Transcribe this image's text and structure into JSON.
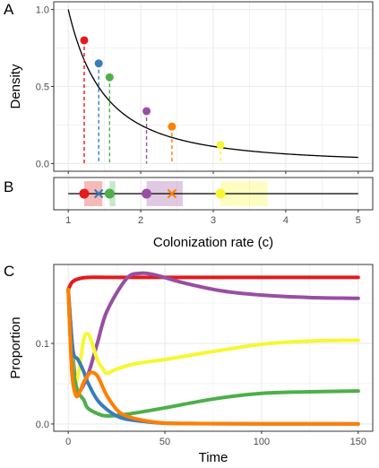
{
  "colors": {
    "red": "#e41a1c",
    "blue": "#377eb8",
    "green": "#4daf4a",
    "purple": "#984ea3",
    "orange": "#ff7f00",
    "yellow": "#f7f731",
    "grid": "#ebebeb",
    "border": "#333333"
  },
  "chart_data": [
    {
      "id": "A",
      "type": "line",
      "panel_label": "A",
      "xlabel": "",
      "ylabel": "Density",
      "xlim": [
        0.8,
        5.2
      ],
      "ylim": [
        -0.05,
        1.05
      ],
      "x_ticks": [
        1,
        2,
        3,
        4,
        5
      ],
      "y_ticks": [
        0.0,
        0.5,
        1.0
      ],
      "y_tick_labels": [
        "0.0",
        "0.5",
        "1.0"
      ],
      "curve": {
        "x_from": 1,
        "x_to": 5,
        "formula": "1/c^2"
      },
      "points": [
        {
          "name": "red",
          "x": 1.22,
          "y": 0.8
        },
        {
          "name": "blue",
          "x": 1.42,
          "y": 0.65
        },
        {
          "name": "green",
          "x": 1.57,
          "y": 0.56
        },
        {
          "name": "purple",
          "x": 2.08,
          "y": 0.34
        },
        {
          "name": "orange",
          "x": 2.43,
          "y": 0.24
        },
        {
          "name": "yellow",
          "x": 3.1,
          "y": 0.12
        }
      ]
    },
    {
      "id": "B",
      "type": "scatter",
      "panel_label": "B",
      "xlabel": "Colonization rate (c)",
      "xlim": [
        0.8,
        5.2
      ],
      "x_ticks": [
        1,
        2,
        3,
        4,
        5
      ],
      "line_from": 1,
      "line_to": 5,
      "ranges": [
        {
          "name": "red",
          "from": 1.22,
          "to": 1.47
        },
        {
          "name": "green",
          "from": 1.57,
          "to": 1.65
        },
        {
          "name": "purple",
          "from": 2.08,
          "to": 2.58
        },
        {
          "name": "yellow",
          "from": 3.1,
          "to": 3.75
        }
      ],
      "points": [
        {
          "name": "red",
          "x": 1.22,
          "marker": "circle"
        },
        {
          "name": "blue",
          "x": 1.42,
          "marker": "cross"
        },
        {
          "name": "green",
          "x": 1.57,
          "marker": "circle"
        },
        {
          "name": "purple",
          "x": 2.08,
          "marker": "circle"
        },
        {
          "name": "orange",
          "x": 2.43,
          "marker": "cross"
        },
        {
          "name": "yellow",
          "x": 3.1,
          "marker": "circle"
        }
      ]
    },
    {
      "id": "C",
      "type": "line",
      "panel_label": "C",
      "xlabel": "Time",
      "ylabel": "Proportion",
      "xlim": [
        -7.5,
        157.5
      ],
      "ylim": [
        -0.009,
        0.198
      ],
      "x_ticks": [
        0,
        50,
        100,
        150
      ],
      "y_ticks": [
        0.0,
        0.1
      ],
      "y_tick_labels": [
        "0.0",
        "0.1"
      ],
      "series": [
        {
          "name": "red",
          "x": [
            0,
            2,
            5,
            10,
            20,
            40,
            80,
            150
          ],
          "values": [
            0.167,
            0.176,
            0.18,
            0.182,
            0.182,
            0.182,
            0.182,
            0.182
          ]
        },
        {
          "name": "purple",
          "x": [
            0,
            3,
            5,
            10,
            15,
            20,
            30,
            37,
            45,
            60,
            80,
            100,
            125,
            150
          ],
          "values": [
            0.167,
            0.07,
            0.04,
            0.06,
            0.1,
            0.14,
            0.18,
            0.187,
            0.185,
            0.175,
            0.165,
            0.16,
            0.157,
            0.156
          ]
        },
        {
          "name": "yellow",
          "x": [
            0,
            3,
            5,
            8,
            10,
            12,
            15,
            18,
            20,
            25,
            35,
            50,
            75,
            100,
            125,
            150
          ],
          "values": [
            0.167,
            0.06,
            0.06,
            0.105,
            0.112,
            0.103,
            0.08,
            0.068,
            0.063,
            0.068,
            0.075,
            0.08,
            0.09,
            0.099,
            0.103,
            0.104
          ]
        },
        {
          "name": "green",
          "x": [
            0,
            1,
            2,
            3,
            5,
            8,
            10,
            15,
            20,
            30,
            50,
            75,
            100,
            125,
            150
          ],
          "values": [
            0.167,
            0.11,
            0.08,
            0.06,
            0.04,
            0.03,
            0.02,
            0.013,
            0.01,
            0.012,
            0.02,
            0.031,
            0.038,
            0.04,
            0.041
          ]
        },
        {
          "name": "blue",
          "x": [
            0,
            1,
            2,
            3,
            5,
            8,
            10,
            15,
            20,
            25,
            30,
            40,
            50,
            70,
            100,
            150
          ],
          "values": [
            0.167,
            0.13,
            0.1,
            0.085,
            0.08,
            0.065,
            0.052,
            0.03,
            0.018,
            0.01,
            0.006,
            0.003,
            0.001,
            0.0005,
            0.0002,
            0.0001
          ]
        },
        {
          "name": "orange",
          "x": [
            0,
            1,
            2,
            4,
            6,
            8,
            10,
            12,
            15,
            18,
            20,
            25,
            30,
            40,
            50,
            70,
            100,
            150
          ],
          "values": [
            0.167,
            0.11,
            0.06,
            0.035,
            0.04,
            0.052,
            0.06,
            0.064,
            0.06,
            0.045,
            0.035,
            0.018,
            0.01,
            0.004,
            0.001,
            0.0005,
            0.0002,
            0.0001
          ]
        }
      ]
    }
  ]
}
